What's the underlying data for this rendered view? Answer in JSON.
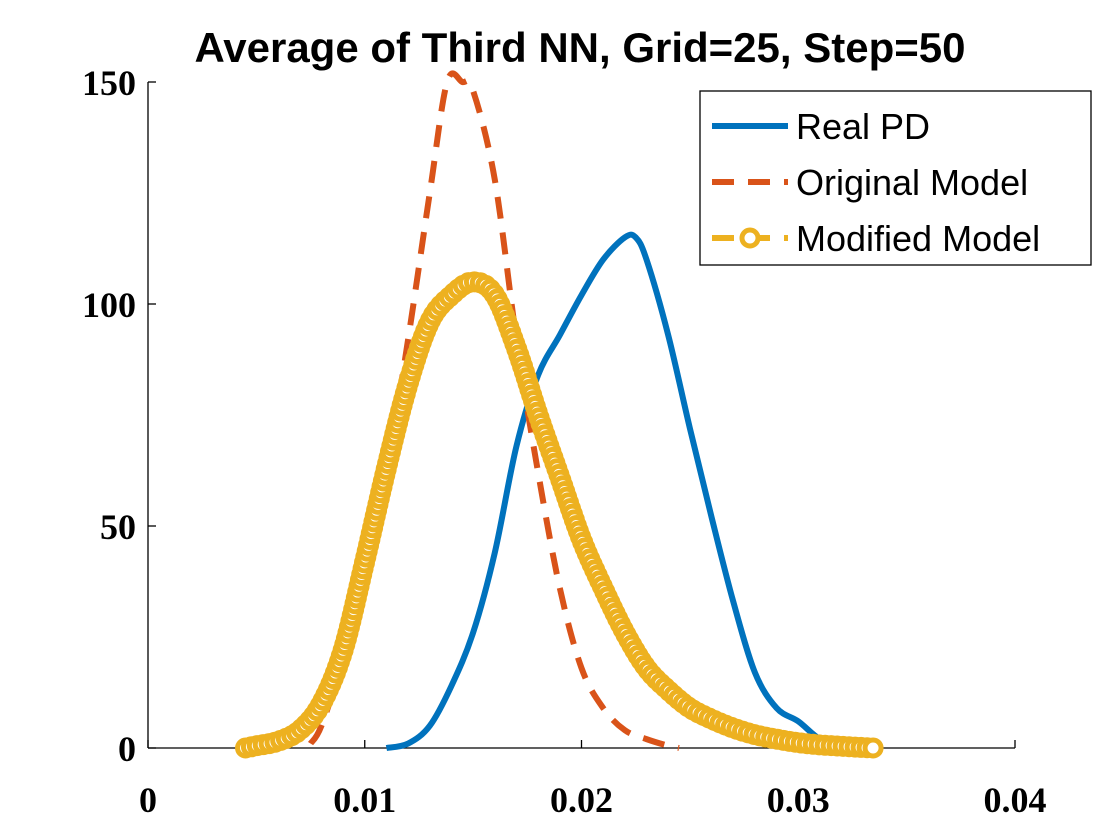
{
  "chart_data": {
    "type": "line",
    "title": "Average of Third NN, Grid=25, Step=50",
    "xlabel": "",
    "ylabel": "",
    "xlim": [
      0,
      0.04
    ],
    "ylim": [
      0,
      150
    ],
    "x_ticks": [
      "0",
      "0.01",
      "0.02",
      "0.03",
      "0.04"
    ],
    "y_ticks": [
      "0",
      "50",
      "100",
      "150"
    ],
    "x_tick_values": [
      0,
      0.01,
      0.02,
      0.03,
      0.04
    ],
    "y_tick_values": [
      0,
      50,
      100,
      150
    ],
    "grid": false,
    "legend_position": "top-right",
    "series": [
      {
        "name": "Real PD",
        "color": "#0072BD",
        "style": "solid",
        "x": [
          0.011,
          0.012,
          0.013,
          0.014,
          0.015,
          0.016,
          0.017,
          0.018,
          0.019,
          0.02,
          0.021,
          0.022,
          0.0225,
          0.023,
          0.024,
          0.025,
          0.026,
          0.027,
          0.028,
          0.029,
          0.03,
          0.031,
          0.032,
          0.033
        ],
        "y": [
          0,
          1,
          5,
          14,
          26,
          44,
          68,
          84,
          93,
          102,
          110,
          115,
          115,
          110,
          93,
          72,
          52,
          33,
          17,
          9,
          6,
          2,
          0.5,
          0
        ]
      },
      {
        "name": "Original Model",
        "color": "#D95319",
        "style": "dashed",
        "x": [
          0.0075,
          0.008,
          0.009,
          0.01,
          0.011,
          0.012,
          0.013,
          0.0138,
          0.0145,
          0.015,
          0.016,
          0.017,
          0.018,
          0.019,
          0.02,
          0.021,
          0.022,
          0.023,
          0.024,
          0.0245
        ],
        "y": [
          1,
          5,
          20,
          40,
          62,
          92,
          125,
          150,
          150,
          148,
          128,
          92,
          62,
          36,
          18,
          9,
          4,
          2,
          0.5,
          0
        ]
      },
      {
        "name": "Modified Model",
        "color": "#EDB120",
        "style": "dashed-circle",
        "x": [
          0.0045,
          0.005,
          0.006,
          0.007,
          0.008,
          0.009,
          0.01,
          0.011,
          0.012,
          0.013,
          0.014,
          0.015,
          0.016,
          0.017,
          0.018,
          0.019,
          0.02,
          0.021,
          0.022,
          0.023,
          0.024,
          0.025,
          0.026,
          0.027,
          0.028,
          0.029,
          0.03,
          0.031,
          0.032,
          0.033,
          0.0335
        ],
        "y": [
          0,
          0.5,
          1.5,
          4,
          10,
          22,
          42,
          63,
          82,
          96,
          102,
          105,
          102,
          90,
          75,
          61,
          47,
          36,
          26,
          18,
          13,
          9,
          6.5,
          4.5,
          3,
          2,
          1.2,
          0.7,
          0.4,
          0.1,
          0
        ]
      }
    ]
  }
}
